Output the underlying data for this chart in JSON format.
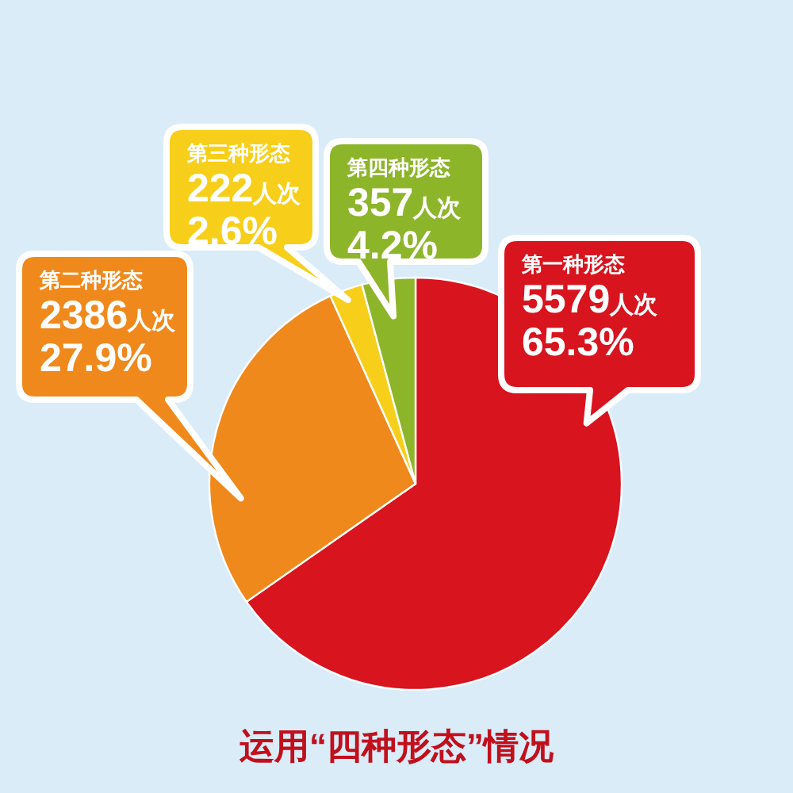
{
  "chart_data": {
    "type": "pie",
    "title": "运用“四种形态”情况",
    "categories": [
      "第一种形态",
      "第二种形态",
      "第三种形态",
      "第四种形态"
    ],
    "values": [
      5579,
      2386,
      222,
      357
    ],
    "colors": [
      "#d8141e",
      "#f0891c",
      "#f7cf1a",
      "#8db52a"
    ],
    "value_labels": [
      "5579人次\n65.3%",
      "2386人次\n27.9%",
      "222人次\n2.6%",
      "357人次\n4.2%"
    ]
  }
}
